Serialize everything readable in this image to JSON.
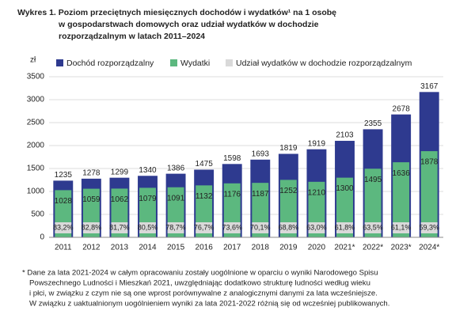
{
  "chart_data": {
    "type": "bar",
    "title": [
      "Wykres 1. Poziom przeciętnych miesięcznych dochodów i wydatków¹ na 1 osobę",
      "w gospodarstwach domowych oraz udział wydatków w dochodzie",
      "rozporządzalnym w latach 2011–2024"
    ],
    "y_label": "zł",
    "categories": [
      "2011",
      "2012",
      "2013",
      "2014",
      "2015",
      "2016",
      "2017",
      "2018",
      "2019",
      "2020",
      "2021*",
      "2022*",
      "2023*",
      "2024*"
    ],
    "series": [
      {
        "name": "Dochód rozporządzalny",
        "color": "#2e3a8f",
        "values": [
          1235,
          1278,
          1299,
          1340,
          1386,
          1475,
          1598,
          1693,
          1819,
          1919,
          2103,
          2355,
          2678,
          3167
        ]
      },
      {
        "name": "Wydatki",
        "color": "#5cb87f",
        "values": [
          1028,
          1059,
          1062,
          1079,
          1091,
          1132,
          1176,
          1187,
          1252,
          1210,
          1300,
          1495,
          1636,
          1878
        ]
      },
      {
        "name": "Udział wydatków w dochodzie rozporządzalnym",
        "color": "#d9d9d9",
        "values": [
          83.2,
          82.8,
          81.7,
          80.5,
          78.7,
          76.7,
          73.6,
          70.1,
          68.8,
          63.0,
          61.8,
          63.5,
          61.1,
          59.3
        ],
        "value_labels": [
          "83,2%",
          "82,8%",
          "81,7%",
          "80,5%",
          "78,7%",
          "76,7%",
          "73,6%",
          "70,1%",
          "68,8%",
          "63,0%",
          "61,8%",
          "63,5%",
          "61,1%",
          "59,3%"
        ]
      }
    ],
    "ylim": [
      0,
      3500
    ],
    "yticks": [
      0,
      500,
      1000,
      1500,
      2000,
      2500,
      3000,
      3500
    ],
    "grid": true,
    "footnote": [
      "* Dane za lata 2021-2024 w całym opracowaniu zostały uogólnione w oparciu o wyniki Narodowego Spisu",
      "Powszechnego Ludności i Mieszkań 2021, uwzględniając dodatkowo strukturę ludności według wieku",
      "i płci, w związku z czym nie są one wprost porównywalne z analogicznymi danymi za lata wcześniejsze.",
      "W związku z uaktualnionym uogólnieniem wyniki za lata 2021-2022 różnią się od wcześniej publikowanych."
    ]
  }
}
